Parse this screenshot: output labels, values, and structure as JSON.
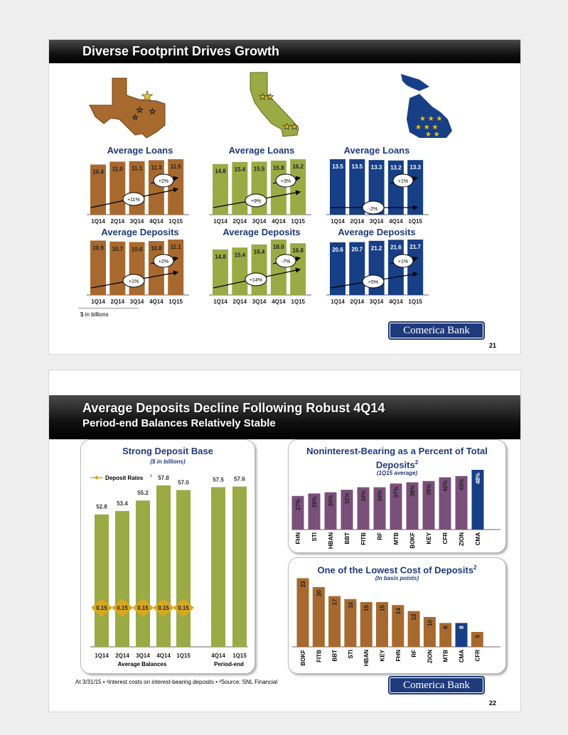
{
  "slide1": {
    "title": "Diverse Footprint Drives Growth",
    "footnote": "$ in billions",
    "logo": "Comerica Bank",
    "page_number": "21",
    "colors": {
      "texas": "#a8692e",
      "california": "#9aab45",
      "michigan": "#173f86"
    },
    "maps": [
      "texas-map",
      "california-map",
      "michigan-map"
    ]
  },
  "slide2": {
    "title": "Average Deposits Decline Following Robust 4Q14",
    "subtitle": "Period-end Balances Relatively Stable",
    "footnote": "At 3/31/15 • ¹Interest costs on interest-bearing deposits • ²Source: SNL Financial",
    "logo": "Comerica Bank",
    "page_number": "22"
  },
  "chart_data": [
    {
      "type": "bar",
      "title": "Average Loans",
      "region": "Texas",
      "categories": [
        "1Q14",
        "2Q14",
        "3Q14",
        "4Q14",
        "1Q15"
      ],
      "values": [
        10.4,
        11.0,
        11.1,
        11.3,
        11.5
      ],
      "annotations": {
        "long": "+11%",
        "short": "+2%"
      },
      "color": "#a8692e"
    },
    {
      "type": "bar",
      "title": "Average Loans",
      "region": "California",
      "categories": [
        "1Q14",
        "2Q14",
        "3Q14",
        "4Q14",
        "1Q15"
      ],
      "values": [
        14.8,
        15.4,
        15.5,
        15.8,
        16.2
      ],
      "annotations": {
        "long": "+9%",
        "short": "+3%"
      },
      "color": "#9aab45"
    },
    {
      "type": "bar",
      "title": "Average Loans",
      "region": "Michigan",
      "categories": [
        "1Q14",
        "2Q14",
        "3Q14",
        "4Q14",
        "1Q15"
      ],
      "values": [
        13.5,
        13.5,
        13.3,
        13.2,
        13.3
      ],
      "annotations": {
        "long": "-2%",
        "short": "+1%"
      },
      "color": "#173f86"
    },
    {
      "type": "bar",
      "title": "Average Deposits",
      "region": "Texas",
      "categories": [
        "1Q14",
        "2Q14",
        "3Q14",
        "4Q14",
        "1Q15"
      ],
      "values": [
        10.9,
        10.7,
        10.6,
        10.8,
        11.1
      ],
      "annotations": {
        "long": "+1%",
        "short": "+2%"
      },
      "color": "#a8692e"
    },
    {
      "type": "bar",
      "title": "Average Deposits",
      "region": "California",
      "categories": [
        "1Q14",
        "2Q14",
        "3Q14",
        "4Q14",
        "1Q15"
      ],
      "values": [
        14.8,
        15.4,
        16.4,
        18.0,
        16.8
      ],
      "annotations": {
        "long": "+14%",
        "short": "-7%"
      },
      "color": "#9aab45"
    },
    {
      "type": "bar",
      "title": "Average Deposits",
      "region": "Michigan",
      "categories": [
        "1Q14",
        "2Q14",
        "3Q14",
        "4Q14",
        "1Q15"
      ],
      "values": [
        20.6,
        20.7,
        21.2,
        21.6,
        21.7
      ],
      "annotations": {
        "long": "+5%",
        "short": "+1%"
      },
      "color": "#173f86"
    },
    {
      "type": "bar",
      "title": "Strong Deposit Base",
      "subtitle": "($ in billions)",
      "categories": [
        "1Q14",
        "2Q14",
        "3Q14",
        "4Q14",
        "1Q15",
        "4Q14",
        "1Q15"
      ],
      "groups": [
        "Average Balances",
        "Period-end"
      ],
      "values": [
        52.8,
        53.4,
        55.2,
        57.8,
        57.0,
        57.5,
        57.6
      ],
      "color": "#9aab45",
      "line_series": {
        "name": "Deposit Rates",
        "superscript": "1",
        "values": [
          0.15,
          0.15,
          0.15,
          0.15,
          0.15
        ],
        "color": "#d9a820"
      }
    },
    {
      "type": "bar",
      "title": "Noninterest-Bearing as a Percent of Total Deposits",
      "title_sup": "2",
      "subtitle": "(1Q15 average)",
      "categories": [
        "FHN",
        "STI",
        "HBAN",
        "BBT",
        "FITB",
        "RF",
        "MTB",
        "BOKF",
        "KEY",
        "CFR",
        "ZION",
        "CMA"
      ],
      "values": [
        27,
        29,
        30,
        32,
        34,
        34,
        37,
        38,
        39,
        42,
        43,
        48
      ],
      "unit": "%",
      "color": "#7a4f7a",
      "highlight": {
        "category": "CMA",
        "color": "#173f86"
      }
    },
    {
      "type": "bar",
      "title": "One of the Lowest Cost of Deposits",
      "title_sup": "2",
      "subtitle": "(In basis points)",
      "categories": [
        "BOKF",
        "FITB",
        "BBT",
        "STI",
        "HBAN",
        "KEY",
        "FHN",
        "RF",
        "ZION",
        "MTB",
        "CMA",
        "CFR"
      ],
      "values": [
        23,
        20,
        17,
        16,
        15,
        15,
        14,
        12,
        10,
        8,
        8,
        5
      ],
      "unit": "",
      "color": "#a8692e",
      "highlight": {
        "category": "CMA",
        "color": "#173f86"
      }
    }
  ]
}
